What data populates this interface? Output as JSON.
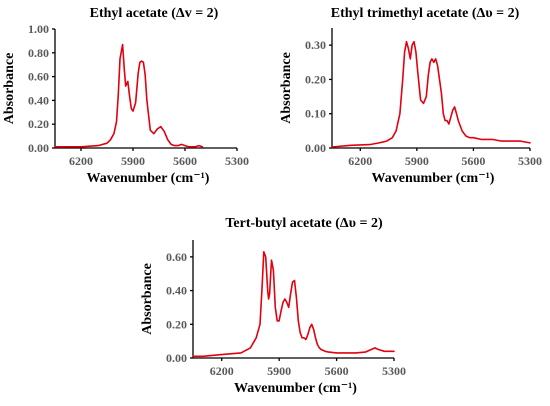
{
  "chart_data": [
    {
      "type": "line",
      "title": "Ethyl acetate (Δv = 2)",
      "xlabel": "Wavenumber (cm⁻¹)",
      "ylabel": "Absorbance",
      "xlim": [
        6350,
        5300
      ],
      "ylim": [
        0,
        1.0
      ],
      "x_ticks": [
        "6200",
        "5900",
        "5600",
        "5300"
      ],
      "y_ticks": [
        "0.00",
        "0.20",
        "0.40",
        "0.60",
        "0.80",
        "1.00"
      ],
      "color": "#e3000f",
      "x": [
        6350,
        6200,
        6100,
        6050,
        6030,
        6010,
        5995,
        5985,
        5975,
        5960,
        5950,
        5942,
        5930,
        5920,
        5910,
        5900,
        5885,
        5870,
        5860,
        5850,
        5840,
        5830,
        5820,
        5800,
        5780,
        5760,
        5740,
        5720,
        5700,
        5680,
        5660,
        5640,
        5620,
        5600,
        5580,
        5560,
        5540,
        5520,
        5500
      ],
      "y": [
        0.01,
        0.01,
        0.02,
        0.04,
        0.07,
        0.12,
        0.22,
        0.45,
        0.75,
        0.87,
        0.66,
        0.52,
        0.56,
        0.44,
        0.33,
        0.31,
        0.38,
        0.63,
        0.72,
        0.73,
        0.72,
        0.62,
        0.4,
        0.15,
        0.12,
        0.16,
        0.18,
        0.14,
        0.07,
        0.03,
        0.02,
        0.02,
        0.03,
        0.02,
        0.01,
        0.01,
        0.01,
        0.02,
        0.01
      ]
    },
    {
      "type": "line",
      "title": "Ethyl trimethyl acetate (Δυ = 2)",
      "xlabel": "Wavenumber (cm⁻¹)",
      "ylabel": "Absorbance",
      "xlim": [
        6350,
        5300
      ],
      "ylim": [
        0,
        0.35
      ],
      "x_ticks": [
        "6200",
        "5900",
        "5600",
        "5300"
      ],
      "y_ticks": [
        "0.00",
        "0.10",
        "0.20",
        "0.30"
      ],
      "color": "#e3000f",
      "x": [
        6350,
        6250,
        6150,
        6100,
        6060,
        6030,
        6010,
        5990,
        5975,
        5965,
        5955,
        5945,
        5935,
        5925,
        5915,
        5905,
        5895,
        5880,
        5865,
        5850,
        5840,
        5830,
        5820,
        5810,
        5800,
        5790,
        5780,
        5770,
        5760,
        5750,
        5740,
        5730,
        5720,
        5710,
        5700,
        5690,
        5680,
        5660,
        5640,
        5620,
        5600,
        5560,
        5500,
        5450,
        5400,
        5350,
        5300
      ],
      "y": [
        0.003,
        0.008,
        0.01,
        0.015,
        0.02,
        0.03,
        0.05,
        0.1,
        0.2,
        0.28,
        0.31,
        0.29,
        0.26,
        0.3,
        0.31,
        0.28,
        0.22,
        0.14,
        0.13,
        0.15,
        0.21,
        0.25,
        0.26,
        0.25,
        0.26,
        0.24,
        0.2,
        0.16,
        0.1,
        0.08,
        0.08,
        0.07,
        0.09,
        0.11,
        0.12,
        0.1,
        0.08,
        0.05,
        0.035,
        0.03,
        0.03,
        0.025,
        0.025,
        0.02,
        0.02,
        0.02,
        0.015
      ]
    },
    {
      "type": "line",
      "title": "Tert-butyl acetate  (Δυ = 2)",
      "xlabel": "Wavenumber (cm⁻¹)",
      "ylabel": "Absorbance",
      "xlim": [
        6350,
        5300
      ],
      "ylim": [
        0,
        0.7
      ],
      "x_ticks": [
        "6200",
        "5900",
        "5600",
        "5300"
      ],
      "y_ticks": [
        "0.00",
        "0.20",
        "0.40",
        "0.60"
      ],
      "color": "#e3000f",
      "x": [
        6350,
        6300,
        6200,
        6100,
        6050,
        6020,
        6000,
        5990,
        5980,
        5970,
        5960,
        5955,
        5950,
        5940,
        5930,
        5920,
        5910,
        5900,
        5890,
        5880,
        5870,
        5860,
        5850,
        5840,
        5830,
        5820,
        5810,
        5800,
        5790,
        5780,
        5770,
        5760,
        5750,
        5740,
        5730,
        5720,
        5710,
        5700,
        5690,
        5680,
        5670,
        5660,
        5640,
        5600,
        5550,
        5500,
        5450,
        5420,
        5400,
        5380,
        5350,
        5300
      ],
      "y": [
        0.01,
        0.01,
        0.02,
        0.03,
        0.06,
        0.12,
        0.2,
        0.4,
        0.63,
        0.6,
        0.4,
        0.35,
        0.38,
        0.58,
        0.52,
        0.3,
        0.22,
        0.22,
        0.28,
        0.33,
        0.35,
        0.33,
        0.3,
        0.38,
        0.45,
        0.46,
        0.36,
        0.22,
        0.15,
        0.12,
        0.12,
        0.11,
        0.14,
        0.18,
        0.2,
        0.17,
        0.12,
        0.08,
        0.06,
        0.05,
        0.045,
        0.04,
        0.035,
        0.03,
        0.03,
        0.03,
        0.035,
        0.05,
        0.06,
        0.05,
        0.04,
        0.04
      ]
    }
  ]
}
